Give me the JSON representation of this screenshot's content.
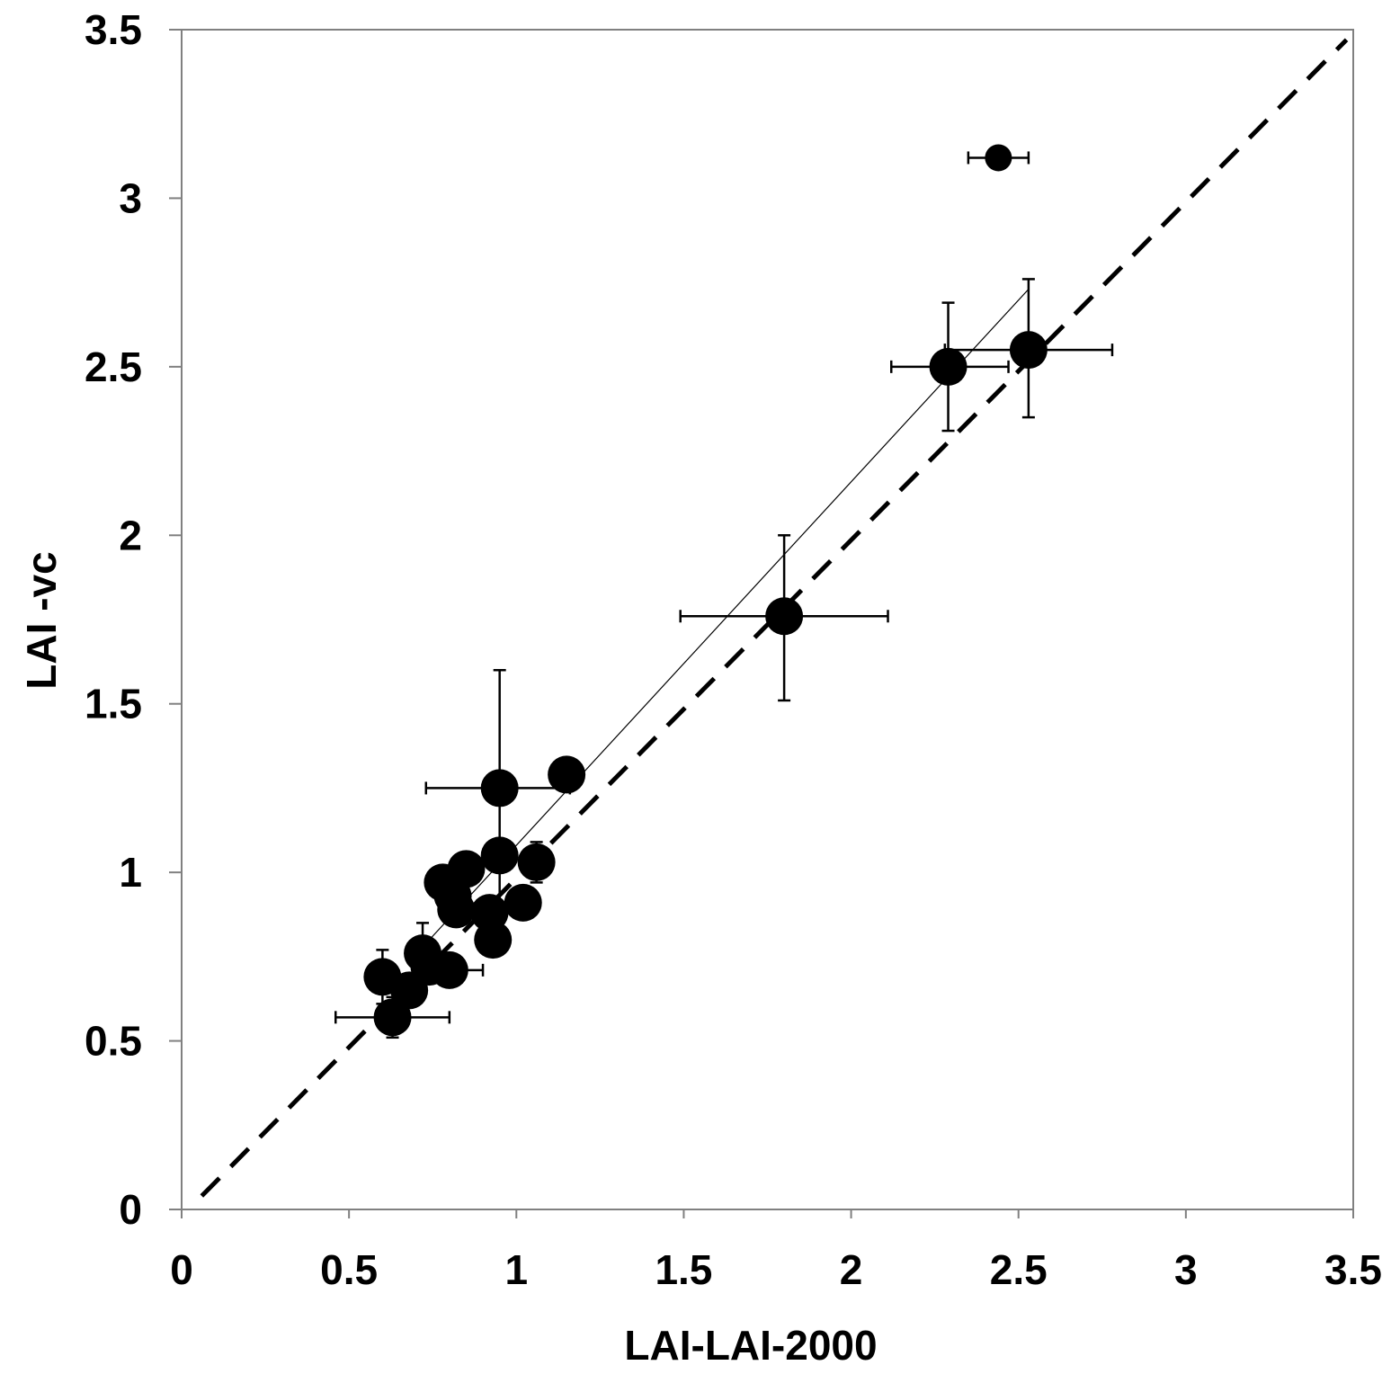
{
  "chart_data": {
    "type": "scatter",
    "title": "",
    "xlabel": "LAI-LAI-2000",
    "ylabel": "LAI -vc",
    "xlim": [
      0,
      3.5
    ],
    "ylim": [
      0,
      3.5
    ],
    "x_ticks": [
      "0",
      "0.5",
      "1",
      "1.5",
      "2",
      "2.5",
      "3",
      "3.5"
    ],
    "y_ticks": [
      "0",
      "0.5",
      "1",
      "1.5",
      "2",
      "2.5",
      "3",
      "3.5"
    ],
    "grid": false,
    "legend": "none",
    "colors": {
      "points": "#000000",
      "lines": "#000000",
      "axis": "#808080"
    },
    "series": [
      {
        "points": [
          {
            "x": 0.6,
            "y": 0.69,
            "ylo": 0.61,
            "yhi": 0.77
          },
          {
            "x": 0.63,
            "y": 0.57,
            "xlo": 0.46,
            "xhi": 0.8,
            "ylo": 0.51,
            "yhi": 0.63
          },
          {
            "x": 0.68,
            "y": 0.65,
            "ylo": 0.62,
            "yhi": 0.68
          },
          {
            "x": 0.72,
            "y": 0.76,
            "ylo": 0.67,
            "yhi": 0.85
          },
          {
            "x": 0.74,
            "y": 0.72
          },
          {
            "x": 0.8,
            "y": 0.71,
            "xlo": 0.7,
            "xhi": 0.9
          },
          {
            "x": 0.78,
            "y": 0.97
          },
          {
            "x": 0.81,
            "y": 0.93
          },
          {
            "x": 0.82,
            "y": 0.89
          },
          {
            "x": 0.85,
            "y": 1.01,
            "ylo": 0.96,
            "yhi": 1.06
          },
          {
            "x": 0.92,
            "y": 0.88,
            "ylo": 0.84,
            "yhi": 0.92
          },
          {
            "x": 0.93,
            "y": 0.8
          },
          {
            "x": 0.95,
            "y": 1.05
          },
          {
            "x": 0.95,
            "y": 1.25,
            "xlo": 0.73,
            "xhi": 1.16,
            "ylo": 0.9,
            "yhi": 1.6
          },
          {
            "x": 1.02,
            "y": 0.91,
            "xlo": 0.97,
            "xhi": 1.07
          },
          {
            "x": 1.06,
            "y": 1.03,
            "ylo": 0.97,
            "yhi": 1.09
          },
          {
            "x": 1.15,
            "y": 1.29
          },
          {
            "x": 1.8,
            "y": 1.76,
            "xlo": 1.49,
            "xhi": 2.11,
            "ylo": 1.51,
            "yhi": 2.0
          },
          {
            "x": 2.29,
            "y": 2.5,
            "xlo": 2.12,
            "xhi": 2.47,
            "ylo": 2.31,
            "yhi": 2.69
          },
          {
            "x": 2.53,
            "y": 2.55,
            "xlo": 2.28,
            "xhi": 2.78,
            "ylo": 2.35,
            "yhi": 2.76
          },
          {
            "x": 2.44,
            "y": 3.12,
            "xlo": 2.35,
            "xhi": 2.53
          }
        ]
      }
    ],
    "reference_lines": [
      {
        "kind": "one-to-one",
        "style": "dashed",
        "x": [
          0.06,
          3.48
        ],
        "y": [
          0.04,
          3.47
        ]
      },
      {
        "kind": "regression",
        "style": "thin-solid",
        "x": [
          0.74,
          2.53
        ],
        "y": [
          0.8,
          2.73
        ]
      }
    ]
  }
}
